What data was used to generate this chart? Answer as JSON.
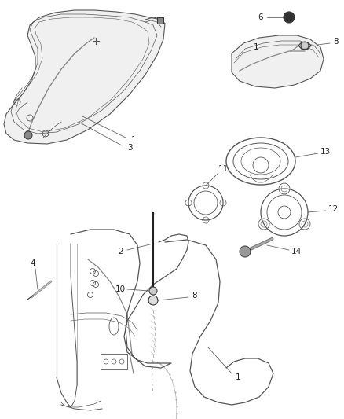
{
  "bg_color": "#ffffff",
  "line_color": "#555555",
  "dark_color": "#333333",
  "light_color": "#aaaaaa",
  "label_fontsize": 7.5,
  "figsize": [
    4.38,
    5.33
  ],
  "dpi": 100
}
